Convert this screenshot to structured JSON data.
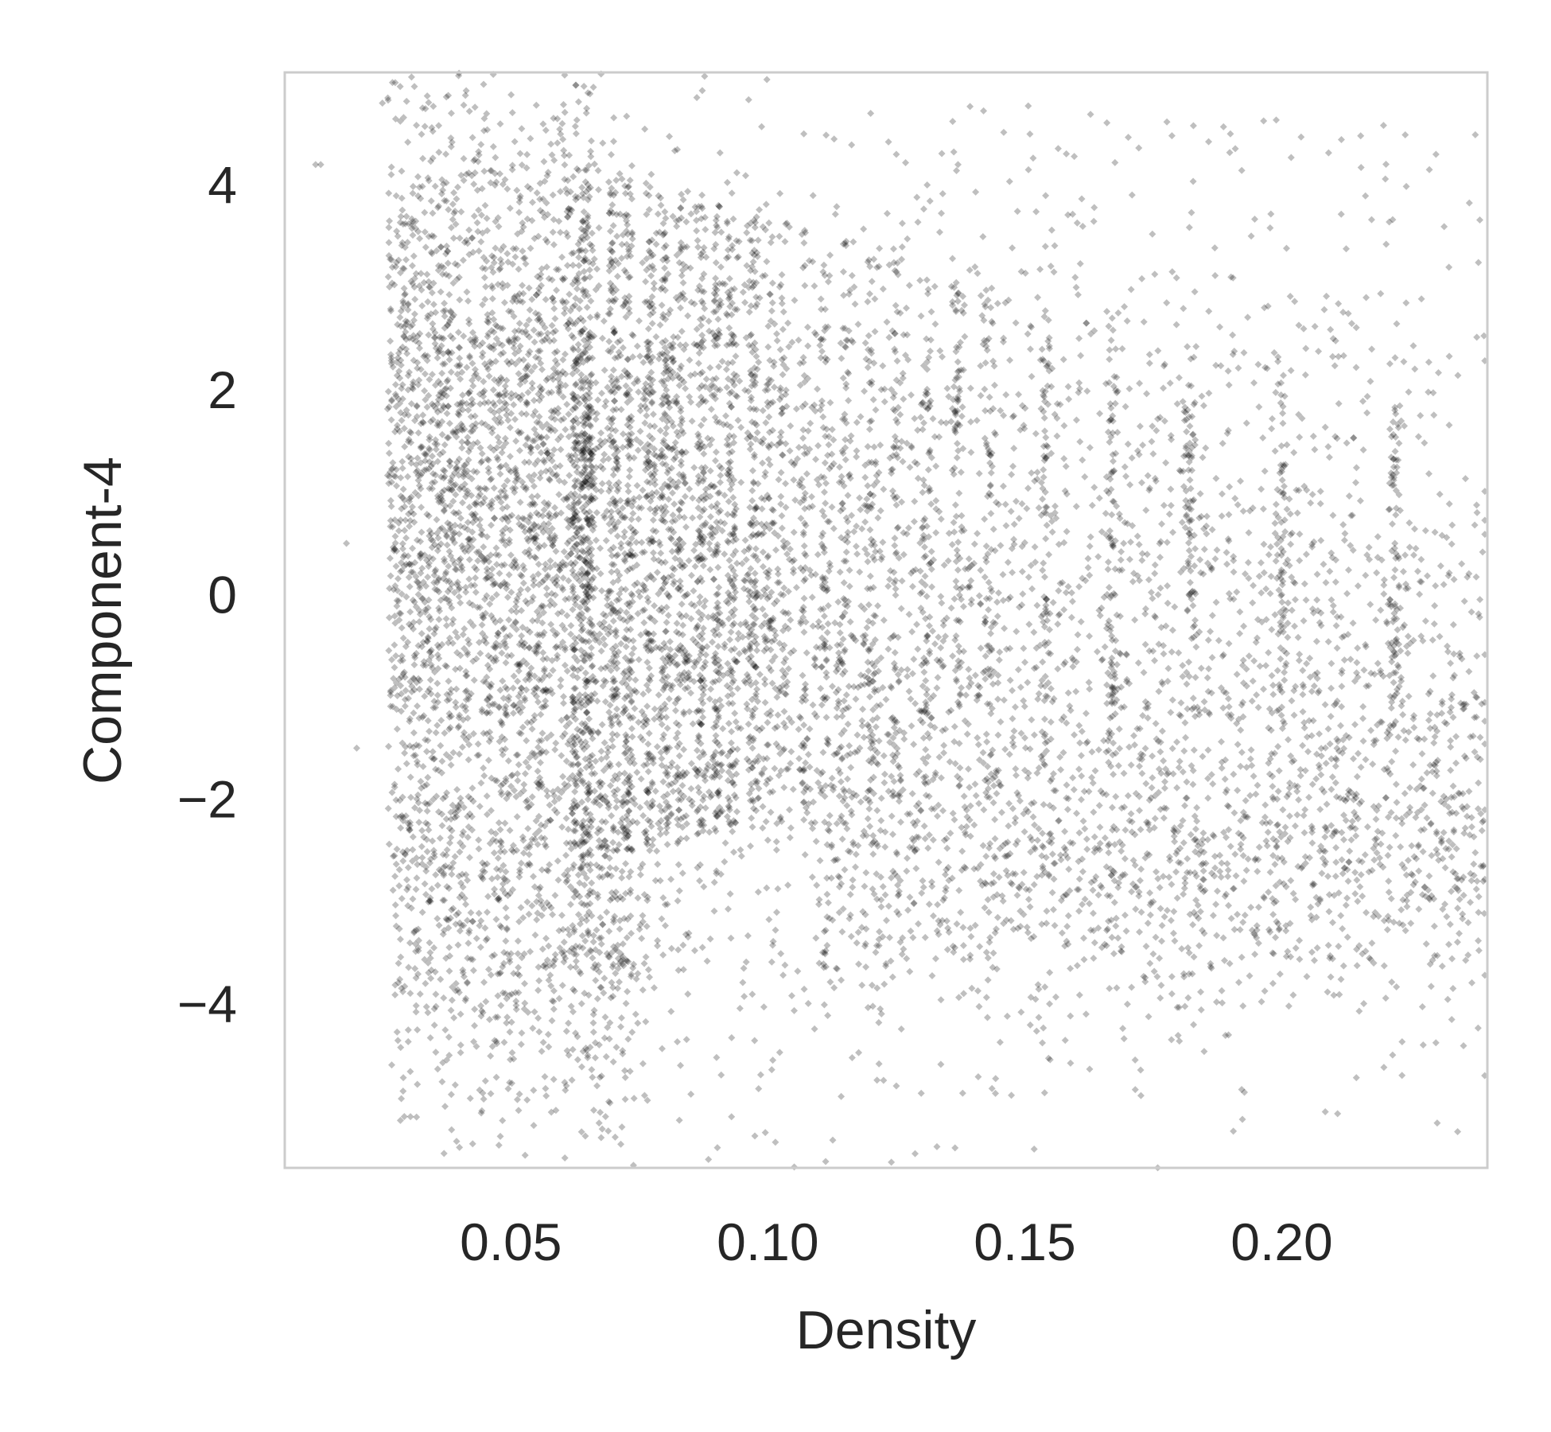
{
  "chart_data": {
    "type": "scatter",
    "title": "",
    "xlabel": "Density",
    "ylabel": "Component-4",
    "xlim": [
      0.006,
      0.24
    ],
    "ylim": [
      -5.6,
      5.1
    ],
    "xticks": [
      {
        "value": 0.05,
        "label": "0.05"
      },
      {
        "value": 0.1,
        "label": "0.10"
      },
      {
        "value": 0.15,
        "label": "0.15"
      },
      {
        "value": 0.2,
        "label": "0.20"
      }
    ],
    "yticks": [
      {
        "value": 4,
        "label": "4"
      },
      {
        "value": 2,
        "label": "2"
      },
      {
        "value": 0,
        "label": "0"
      },
      {
        "value": -2,
        "label": "−2"
      },
      {
        "value": -4,
        "label": "−4"
      }
    ],
    "grid": false,
    "marker": "diamond",
    "point_color": "#000000",
    "point_alpha": 0.25,
    "frame_color": "#cccccc",
    "vertical_streak_x": [
      0.065,
      0.07,
      0.073,
      0.077,
      0.08,
      0.083,
      0.087,
      0.09,
      0.093,
      0.097,
      0.1,
      0.103,
      0.107,
      0.111,
      0.115,
      0.12,
      0.125,
      0.131,
      0.137,
      0.143,
      0.154,
      0.167,
      0.182,
      0.2,
      0.222
    ],
    "points": [
      [
        0.012,
        4.2
      ],
      [
        0.013,
        4.2
      ],
      [
        0.018,
        0.5
      ],
      [
        0.02,
        -1.5
      ],
      [
        0.025,
        4.8
      ],
      [
        0.028,
        3.5
      ],
      [
        0.03,
        2.0
      ],
      [
        0.032,
        -0.5
      ],
      [
        0.035,
        -2.5
      ],
      [
        0.038,
        -4.5
      ],
      [
        0.04,
        -5.4
      ],
      [
        0.045,
        3.8
      ],
      [
        0.05,
        1.2
      ],
      [
        0.055,
        -3.0
      ],
      [
        0.06,
        4.6
      ],
      [
        0.062,
        -1.0
      ],
      [
        0.065,
        4.9
      ],
      [
        0.065,
        2.5
      ],
      [
        0.065,
        0.0
      ],
      [
        0.065,
        -2.0
      ],
      [
        0.07,
        3.9
      ],
      [
        0.07,
        1.5
      ],
      [
        0.07,
        -1.0
      ],
      [
        0.07,
        -3.2
      ],
      [
        0.077,
        3.2
      ],
      [
        0.077,
        0.5
      ],
      [
        0.077,
        -2.5
      ],
      [
        0.083,
        2.8
      ],
      [
        0.083,
        -0.5
      ],
      [
        0.083,
        -4.6
      ],
      [
        0.09,
        2.5
      ],
      [
        0.09,
        0.0
      ],
      [
        0.09,
        -2.7
      ],
      [
        0.097,
        3.0
      ],
      [
        0.097,
        -1.2
      ],
      [
        0.1,
        2.0
      ],
      [
        0.1,
        -2.4
      ],
      [
        0.107,
        4.5
      ],
      [
        0.107,
        -2.2
      ],
      [
        0.111,
        1.0
      ],
      [
        0.111,
        -1.0
      ],
      [
        0.115,
        2.6
      ],
      [
        0.115,
        -0.1
      ],
      [
        0.12,
        4.7
      ],
      [
        0.12,
        -1.5
      ],
      [
        0.125,
        4.3
      ],
      [
        0.125,
        1.5
      ],
      [
        0.125,
        -4.8
      ],
      [
        0.131,
        4.0
      ],
      [
        0.131,
        2.2
      ],
      [
        0.131,
        -0.4
      ],
      [
        0.137,
        4.2
      ],
      [
        0.143,
        2.5
      ],
      [
        0.143,
        -0.5
      ],
      [
        0.15,
        -1.4
      ],
      [
        0.154,
        3.4
      ],
      [
        0.154,
        1.0
      ],
      [
        0.154,
        -0.8
      ],
      [
        0.16,
        3.0
      ],
      [
        0.167,
        2.7
      ],
      [
        0.167,
        0.5
      ],
      [
        0.167,
        -1.0
      ],
      [
        0.175,
        -3.0
      ],
      [
        0.182,
        1.4
      ],
      [
        0.182,
        -0.8
      ],
      [
        0.182,
        -3.5
      ],
      [
        0.19,
        4.5
      ],
      [
        0.2,
        1.2
      ],
      [
        0.2,
        0.0
      ],
      [
        0.2,
        -1.1
      ],
      [
        0.21,
        2.5
      ],
      [
        0.215,
        -2.6
      ],
      [
        0.222,
        1.8
      ],
      [
        0.222,
        0.5
      ],
      [
        0.222,
        -0.6
      ],
      [
        0.23,
        4.3
      ],
      [
        0.235,
        0.3
      ],
      [
        0.238,
        0.8
      ],
      [
        0.238,
        -2.8
      ]
    ]
  }
}
